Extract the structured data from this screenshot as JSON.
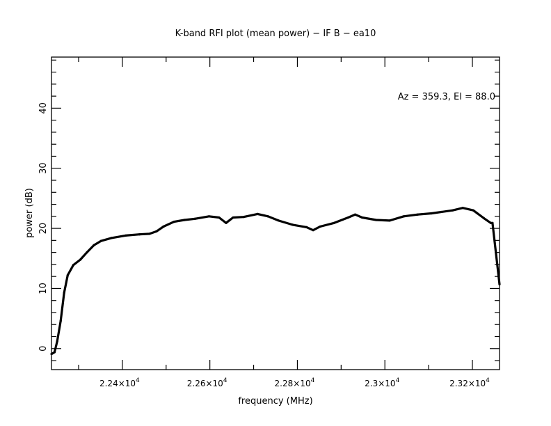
{
  "chart_data": {
    "type": "line",
    "title": "K-band RFI plot (mean power) − IF B − ea10",
    "xlabel": "frequency (MHz)",
    "ylabel": "power (dB)",
    "annotation": "Az = 359.3, El = 88.0",
    "xlim": [
      22238,
      23262
    ],
    "ylim": [
      -3.5,
      48.5
    ],
    "grid": false,
    "x_ticks": [
      22400,
      22600,
      22800,
      23000,
      23200
    ],
    "x_tick_labels": [
      "2.24×10",
      "2.26×10",
      "2.28×10",
      "2.3×10",
      "2.32×10"
    ],
    "x_tick_exponent": "4",
    "y_ticks": [
      0,
      10,
      20,
      30,
      40
    ],
    "y_tick_labels": [
      "0",
      "10",
      "20",
      "30",
      "40"
    ],
    "series": [
      {
        "color": "#000000",
        "x": [
          22238,
          22245,
          22251,
          22259,
          22267,
          22275,
          22288,
          22304,
          22319,
          22335,
          22351,
          22375,
          22407,
          22439,
          22462,
          22478,
          22494,
          22518,
          22542,
          22566,
          22598,
          22621,
          22637,
          22653,
          22677,
          22709,
          22733,
          22757,
          22789,
          22821,
          22836,
          22852,
          22884,
          22916,
          22932,
          22948,
          22980,
          23011,
          23043,
          23075,
          23107,
          23155,
          23178,
          23202,
          23226,
          23242,
          23246,
          23262
        ],
        "y": [
          -0.9,
          -0.6,
          1.2,
          4.6,
          9.3,
          12.2,
          13.9,
          14.8,
          16.0,
          17.2,
          17.9,
          18.4,
          18.8,
          19.0,
          19.1,
          19.5,
          20.3,
          21.1,
          21.4,
          21.6,
          22.0,
          21.8,
          20.9,
          21.8,
          21.9,
          22.4,
          22.0,
          21.3,
          20.6,
          20.2,
          19.7,
          20.3,
          20.9,
          21.8,
          22.3,
          21.8,
          21.4,
          21.3,
          22.0,
          22.3,
          22.5,
          23.0,
          23.4,
          23.0,
          21.7,
          20.9,
          20.9,
          10.7
        ]
      }
    ]
  }
}
